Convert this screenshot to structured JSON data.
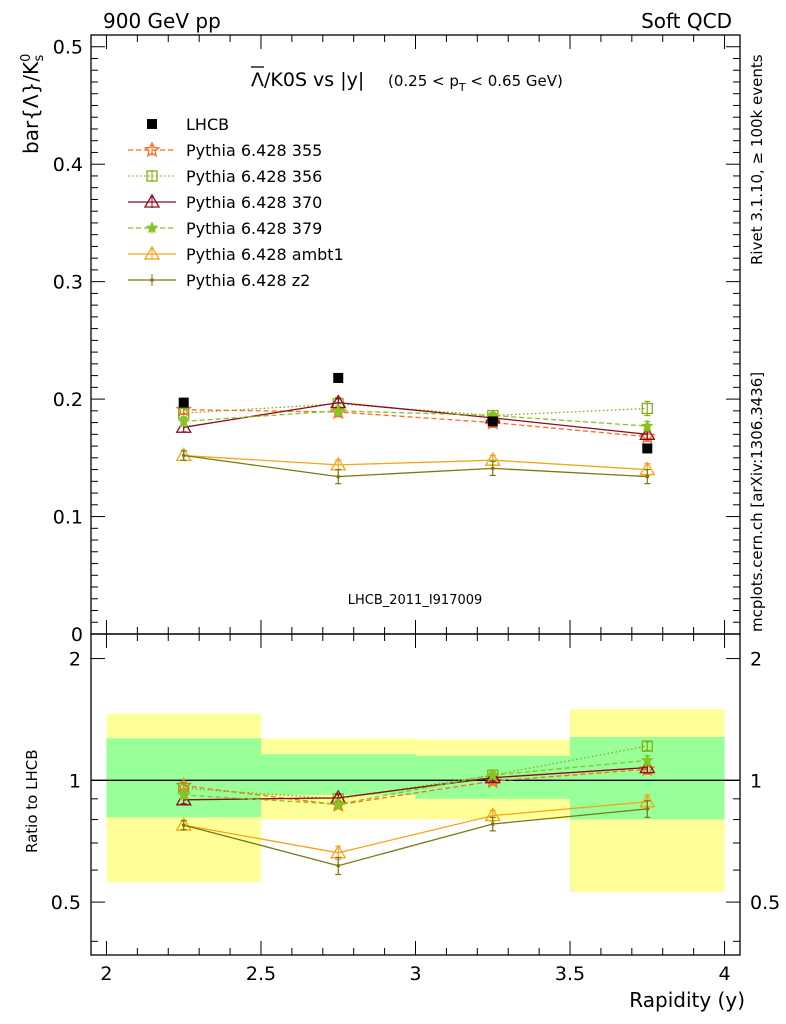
{
  "header": {
    "left": "900 GeV pp",
    "right": "Soft QCD"
  },
  "side_labels": {
    "rivet": "Rivet 3.1.10, ≥ 100k events",
    "mcplots": "mcplots.cern.ch [arXiv:1306.3436]"
  },
  "plot_title": {
    "main": "Λ/K0S vs |y|",
    "cut": "(0.25 < p",
    "cut_sub": "T",
    "cut_end": " < 0.65 GeV)"
  },
  "watermark": "LHCB_2011_I917009",
  "colors": {
    "data": "#000000",
    "p355": "#ff6a1c",
    "p356": "#7fae18",
    "p370": "#8b0a1e",
    "p379": "#85c520",
    "ambt1": "#f5a418",
    "z2": "#7c7710",
    "band_yellow": "#ffff99",
    "band_green": "#99ff99"
  },
  "chart_data": [
    {
      "type": "line",
      "panel": "main",
      "xlabel": "",
      "ylabel": "bar{Λ}/K",
      "ylabel_sup": "0",
      "ylabel_sub": "s",
      "xlim": [
        1.95,
        4.05
      ],
      "ylim": [
        0,
        0.51
      ],
      "yticks": [
        0,
        0.1,
        0.2,
        0.3,
        0.4,
        0.5
      ],
      "yticklabels": [
        "0",
        "0.1",
        "0.2",
        "0.3",
        "0.4",
        "0.5"
      ],
      "legend_position": "top-left",
      "x": [
        2.25,
        2.75,
        3.25,
        3.75
      ],
      "data_series": {
        "name": "LHCB",
        "values": [
          0.197,
          0.218,
          0.181,
          0.158
        ]
      },
      "series": [
        {
          "name": "Pythia 6.428 355",
          "key": "p355",
          "style": "dashed",
          "marker": "star",
          "values": [
            0.191,
            0.189,
            0.18,
            0.168
          ],
          "err": [
            0.004,
            0.004,
            0.004,
            0.004
          ]
        },
        {
          "name": "Pythia 6.428 356",
          "key": "p356",
          "style": "dotted",
          "marker": "open-square",
          "values": [
            0.188,
            0.196,
            0.186,
            0.192
          ],
          "err": [
            0.004,
            0.004,
            0.004,
            0.006
          ]
        },
        {
          "name": "Pythia 6.428 370",
          "key": "p370",
          "style": "solid",
          "marker": "open-triangle",
          "values": [
            0.176,
            0.197,
            0.184,
            0.17
          ],
          "err": [
            0.004,
            0.004,
            0.004,
            0.004
          ]
        },
        {
          "name": "Pythia 6.428 379",
          "key": "p379",
          "style": "dashed",
          "marker": "star-small",
          "values": [
            0.181,
            0.19,
            0.186,
            0.177
          ],
          "err": [
            0.004,
            0.004,
            0.004,
            0.004
          ]
        },
        {
          "name": "Pythia 6.428 ambt1",
          "key": "ambt1",
          "style": "solid",
          "marker": "open-triangle",
          "values": [
            0.152,
            0.144,
            0.148,
            0.14
          ],
          "err": [
            0.004,
            0.004,
            0.004,
            0.005
          ]
        },
        {
          "name": "Pythia 6.428 z2",
          "key": "z2",
          "style": "solid",
          "marker": "dot",
          "values": [
            0.152,
            0.134,
            0.141,
            0.134
          ],
          "err": [
            0.004,
            0.006,
            0.006,
            0.006
          ]
        }
      ]
    },
    {
      "type": "line",
      "panel": "ratio",
      "xlabel": "Rapidity (y)",
      "ylabel": "Ratio to LHCB",
      "xlim": [
        1.95,
        4.05
      ],
      "ylim": [
        0.37,
        2.3
      ],
      "log_y": true,
      "xticks": [
        2,
        2.5,
        3,
        3.5,
        4
      ],
      "xticklabels": [
        "2",
        "2.5",
        "3",
        "3.5",
        "4"
      ],
      "yticks": [
        0.5,
        1,
        2
      ],
      "yticklabels": [
        "0.5",
        "1",
        "2"
      ],
      "reference_line": 1,
      "bins": [
        {
          "x": [
            2.0,
            2.5
          ],
          "yellow": [
            0.56,
            1.46
          ],
          "green": [
            0.81,
            1.27
          ]
        },
        {
          "x": [
            2.5,
            3.0
          ],
          "yellow": [
            0.8,
            1.27
          ],
          "green": [
            0.92,
            1.16
          ]
        },
        {
          "x": [
            3.0,
            3.5
          ],
          "yellow": [
            0.8,
            1.26
          ],
          "green": [
            0.9,
            1.15
          ]
        },
        {
          "x": [
            3.5,
            4.0
          ],
          "yellow": [
            0.53,
            1.5
          ],
          "green": [
            0.8,
            1.28
          ]
        }
      ],
      "x": [
        2.25,
        2.75,
        3.25,
        3.75
      ],
      "series": [
        {
          "name": "Pythia 6.428 355",
          "key": "p355",
          "style": "dashed",
          "marker": "star",
          "values": [
            0.97,
            0.87,
            0.995,
            1.065
          ],
          "err": [
            0.02,
            0.02,
            0.02,
            0.03
          ]
        },
        {
          "name": "Pythia 6.428 356",
          "key": "p356",
          "style": "dotted",
          "marker": "open-square",
          "values": [
            0.955,
            0.9,
            1.03,
            1.215
          ],
          "err": [
            0.02,
            0.02,
            0.02,
            0.03
          ]
        },
        {
          "name": "Pythia 6.428 370",
          "key": "p370",
          "style": "solid",
          "marker": "open-triangle",
          "values": [
            0.895,
            0.905,
            1.015,
            1.075
          ],
          "err": [
            0.02,
            0.02,
            0.02,
            0.03
          ]
        },
        {
          "name": "Pythia 6.428 379",
          "key": "p379",
          "style": "dashed",
          "marker": "star-small",
          "values": [
            0.92,
            0.873,
            1.03,
            1.12
          ],
          "err": [
            0.02,
            0.02,
            0.02,
            0.03
          ]
        },
        {
          "name": "Pythia 6.428 ambt1",
          "key": "ambt1",
          "style": "solid",
          "marker": "open-triangle",
          "values": [
            0.775,
            0.662,
            0.818,
            0.885
          ],
          "err": [
            0.02,
            0.025,
            0.025,
            0.035
          ]
        },
        {
          "name": "Pythia 6.428 z2",
          "key": "z2",
          "style": "solid",
          "marker": "dot",
          "values": [
            0.775,
            0.615,
            0.78,
            0.85
          ],
          "err": [
            0.02,
            0.03,
            0.03,
            0.04
          ]
        }
      ]
    }
  ]
}
